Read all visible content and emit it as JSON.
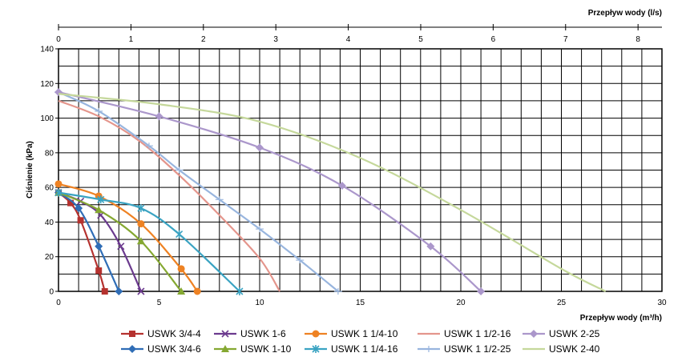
{
  "chart_data": {
    "type": "line",
    "xlabel": "Przepływ wody (m³/h)",
    "ylabel": "Ciśnienie (kPa)",
    "x2label": "Przepływ wody (l/s)",
    "xlim": [
      0,
      30
    ],
    "ylim": [
      0,
      140
    ],
    "x2lim": [
      0,
      8.33
    ],
    "x_ticks": [
      "0",
      "5",
      "10",
      "15",
      "20",
      "25",
      "30"
    ],
    "x_tick_values": [
      0,
      5,
      10,
      15,
      20,
      25,
      30
    ],
    "y_ticks": [
      "0",
      "20",
      "40",
      "60",
      "80",
      "100",
      "120",
      "140"
    ],
    "y_tick_values": [
      0,
      20,
      40,
      60,
      80,
      100,
      120,
      140
    ],
    "x2_ticks": [
      "0",
      "1",
      "2",
      "3",
      "4",
      "5",
      "6",
      "7",
      "8"
    ],
    "x2_tick_values": [
      0,
      1,
      2,
      3,
      4,
      5,
      6,
      7,
      8
    ],
    "grid": true,
    "legend_position": "bottom",
    "series": [
      {
        "name": "USWK 3/4-4",
        "color": "#b5322f",
        "marker": "square",
        "x": [
          0,
          0.6,
          1.1,
          2.0,
          2.3
        ],
        "y": [
          57,
          51,
          41,
          12,
          0
        ]
      },
      {
        "name": "USWK 3/4-6",
        "color": "#2f6db6",
        "marker": "diamond",
        "x": [
          0,
          1.0,
          2.0,
          3.0
        ],
        "y": [
          57,
          48,
          26,
          0
        ]
      },
      {
        "name": "USWK 1-6",
        "color": "#6b3a8e",
        "marker": "x",
        "x": [
          0,
          1.1,
          2.1,
          3.1,
          4.1
        ],
        "y": [
          57,
          52,
          44,
          26,
          0
        ]
      },
      {
        "name": "USWK 1-10",
        "color": "#85a832",
        "marker": "triangle",
        "x": [
          0,
          2.0,
          4.1,
          6.1
        ],
        "y": [
          57,
          47,
          29,
          0
        ]
      },
      {
        "name": "USWK 1 1/4-10",
        "color": "#ee8223",
        "marker": "circle",
        "x": [
          0,
          2.0,
          4.1,
          6.1,
          6.9
        ],
        "y": [
          62,
          55,
          39,
          13,
          0
        ]
      },
      {
        "name": "USWK 1 1/4-16",
        "color": "#3aa3c2",
        "marker": "star",
        "x": [
          0,
          2.1,
          4.1,
          6.0,
          9.0
        ],
        "y": [
          57,
          53,
          48,
          33,
          0
        ]
      },
      {
        "name": "USWK 1 1/2-16",
        "color": "#e4958c",
        "marker": "none",
        "x": [
          0,
          2.0,
          4.0,
          6.0,
          8.0,
          10.0,
          11.0
        ],
        "y": [
          110,
          101,
          87,
          67,
          44,
          19,
          0
        ]
      },
      {
        "name": "USWK 1 1/2-25",
        "color": "#98b5de",
        "marker": "dash",
        "x": [
          0,
          2.0,
          4.5,
          6.0,
          8.0,
          10.0,
          12.0,
          13.9
        ],
        "y": [
          115,
          104,
          84,
          70,
          53,
          36,
          18,
          0
        ]
      },
      {
        "name": "USWK 2-25",
        "color": "#ab97cb",
        "marker": "diamond",
        "x": [
          0,
          5.0,
          10.0,
          14.1,
          18.5,
          21.0
        ],
        "y": [
          115,
          101,
          83,
          61,
          26,
          0
        ]
      },
      {
        "name": "USWK 2-40",
        "color": "#c5d89b",
        "marker": "none",
        "x": [
          0,
          5.0,
          10.0,
          15.0,
          20.0,
          25.0,
          27.2
        ],
        "y": [
          114,
          108,
          98,
          77,
          47,
          13,
          0
        ]
      }
    ]
  }
}
